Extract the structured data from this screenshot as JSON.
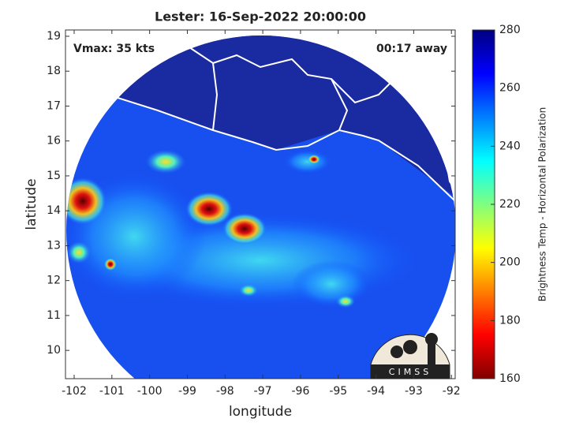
{
  "chart_data": {
    "type": "map",
    "title": "Lester: 16-Sep-2022 20:00:00",
    "annotations": [
      "Vmax: 35 kts",
      "00:17 away"
    ],
    "xlabel": "longitude",
    "ylabel": "latitude",
    "xlim": [
      -102.23,
      -91.9
    ],
    "xticks": [
      -102,
      -101,
      -100,
      -99,
      -98,
      -97,
      -96,
      -95,
      -94,
      -93,
      -92
    ],
    "ylim": [
      9.19,
      19.18
    ],
    "yticks": [
      10,
      11,
      12,
      13,
      14,
      15,
      16,
      17,
      18,
      19
    ],
    "colorbar": {
      "label": "Brightness Temp - Horizontal Polarization",
      "lim": [
        160,
        280
      ],
      "ticks": [
        160,
        180,
        200,
        220,
        240,
        260,
        280
      ]
    },
    "logo": "CIMSS"
  }
}
